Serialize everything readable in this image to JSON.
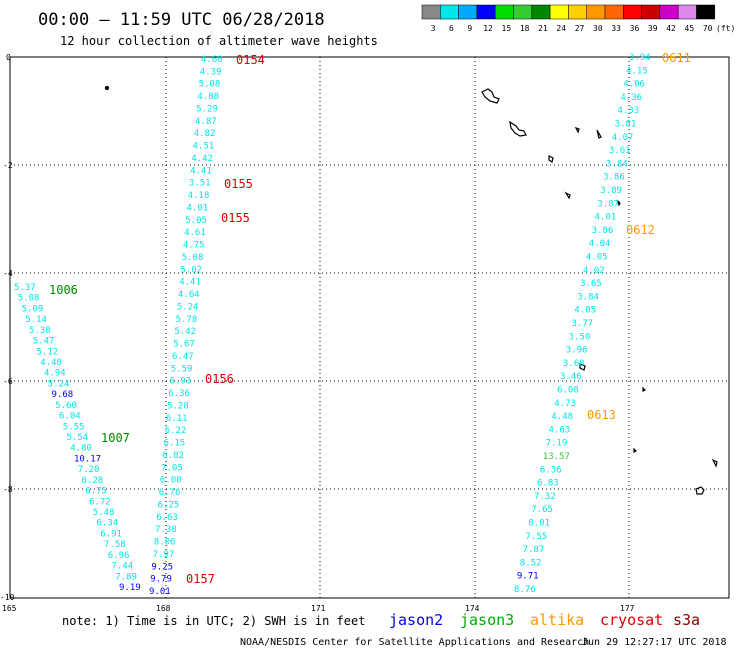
{
  "header": {
    "title": "00:00 — 11:59 UTC 06/28/2018",
    "subtitle": "12 hour collection of altimeter wave heights"
  },
  "legend": {
    "unit": "(ft)",
    "bins": [
      {
        "label": "3",
        "color": "#888888"
      },
      {
        "label": "6",
        "color": "#00e5e5"
      },
      {
        "label": "9",
        "color": "#00aaff"
      },
      {
        "label": "12",
        "color": "#0000ff"
      },
      {
        "label": "15",
        "color": "#00dd00"
      },
      {
        "label": "18",
        "color": "#33cc33"
      },
      {
        "label": "21",
        "color": "#008800"
      },
      {
        "label": "24",
        "color": "#ffff00"
      },
      {
        "label": "27",
        "color": "#ffd000"
      },
      {
        "label": "30",
        "color": "#ff9900"
      },
      {
        "label": "33",
        "color": "#ff6600"
      },
      {
        "label": "36",
        "color": "#ff0000"
      },
      {
        "label": "39",
        "color": "#cc0000"
      },
      {
        "label": "42",
        "color": "#cc00cc"
      },
      {
        "label": "45",
        "color": "#dd88ee"
      },
      {
        "label": "70",
        "color": "#000000"
      }
    ]
  },
  "map": {
    "x_ticks": [
      "165",
      "168",
      "171",
      "174",
      "177"
    ],
    "y_ticks": [
      "0",
      "-2",
      "-4",
      "-6",
      "-8",
      "-10"
    ]
  },
  "tracks": [
    {
      "id": "A",
      "values": [
        {
          "v": "4.60",
          "c": "#00e5e5"
        },
        {
          "v": "4.39",
          "c": "#00e5e5"
        },
        {
          "v": "5.08",
          "c": "#00e5e5"
        },
        {
          "v": "4.88",
          "c": "#00e5e5"
        },
        {
          "v": "5.29",
          "c": "#00e5e5"
        },
        {
          "v": "4.87",
          "c": "#00e5e5"
        },
        {
          "v": "4.82",
          "c": "#00e5e5"
        },
        {
          "v": "4.51",
          "c": "#00e5e5"
        },
        {
          "v": "4.42",
          "c": "#00e5e5"
        },
        {
          "v": "4.41",
          "c": "#00e5e5"
        },
        {
          "v": "3.51",
          "c": "#00e5e5"
        },
        {
          "v": "4.18",
          "c": "#00e5e5"
        },
        {
          "v": "4.01",
          "c": "#00e5e5"
        },
        {
          "v": "5.05",
          "c": "#00e5e5"
        },
        {
          "v": "4.61",
          "c": "#00e5e5"
        },
        {
          "v": "4.75",
          "c": "#00e5e5"
        },
        {
          "v": "5.08",
          "c": "#00e5e5"
        },
        {
          "v": "5.02",
          "c": "#00e5e5"
        },
        {
          "v": "4.41",
          "c": "#00e5e5"
        },
        {
          "v": "4.64",
          "c": "#00e5e5"
        },
        {
          "v": "5.24",
          "c": "#00e5e5"
        },
        {
          "v": "5.78",
          "c": "#00e5e5"
        },
        {
          "v": "5.42",
          "c": "#00e5e5"
        },
        {
          "v": "5.67",
          "c": "#00e5e5"
        },
        {
          "v": "6.47",
          "c": "#00e5e5"
        },
        {
          "v": "5.59",
          "c": "#00e5e5"
        },
        {
          "v": "5.93",
          "c": "#00e5e5"
        },
        {
          "v": "6.36",
          "c": "#00e5e5"
        },
        {
          "v": "5.28",
          "c": "#00e5e5"
        },
        {
          "v": "6.11",
          "c": "#00e5e5"
        },
        {
          "v": "6.22",
          "c": "#00e5e5"
        },
        {
          "v": "6.15",
          "c": "#00e5e5"
        },
        {
          "v": "6.82",
          "c": "#00e5e5"
        },
        {
          "v": "7.05",
          "c": "#00e5e5"
        },
        {
          "v": "6.00",
          "c": "#00e5e5"
        },
        {
          "v": "6.76",
          "c": "#00e5e5"
        },
        {
          "v": "6.25",
          "c": "#00e5e5"
        },
        {
          "v": "6.63",
          "c": "#00e5e5"
        },
        {
          "v": "7.38",
          "c": "#00e5e5"
        },
        {
          "v": "8.06",
          "c": "#00e5e5"
        },
        {
          "v": "7.97",
          "c": "#00e5e5"
        },
        {
          "v": "9.25",
          "c": "#0000ff"
        },
        {
          "v": "9.79",
          "c": "#0000ff"
        },
        {
          "v": "9.01",
          "c": "#0000ff"
        }
      ]
    },
    {
      "id": "B",
      "values": [
        {
          "v": "5.37",
          "c": "#00e5e5"
        },
        {
          "v": "5.08",
          "c": "#00e5e5"
        },
        {
          "v": "5.09",
          "c": "#00e5e5"
        },
        {
          "v": "5.14",
          "c": "#00e5e5"
        },
        {
          "v": "5.38",
          "c": "#00e5e5"
        },
        {
          "v": "5.47",
          "c": "#00e5e5"
        },
        {
          "v": "5.12",
          "c": "#00e5e5"
        },
        {
          "v": "4.48",
          "c": "#00e5e5"
        },
        {
          "v": "4.94",
          "c": "#00e5e5"
        },
        {
          "v": "5.24",
          "c": "#00e5e5"
        },
        {
          "v": "9.68",
          "c": "#0000ff"
        },
        {
          "v": "5.60",
          "c": "#00e5e5"
        },
        {
          "v": "6.04",
          "c": "#00e5e5"
        },
        {
          "v": "5.55",
          "c": "#00e5e5"
        },
        {
          "v": "5.54",
          "c": "#00e5e5"
        },
        {
          "v": "4.80",
          "c": "#00e5e5"
        },
        {
          "v": "10.17",
          "c": "#0000ff"
        },
        {
          "v": "7.20",
          "c": "#00e5e5"
        },
        {
          "v": "6.28",
          "c": "#00e5e5"
        },
        {
          "v": "6.75",
          "c": "#00e5e5"
        },
        {
          "v": "6.72",
          "c": "#00e5e5"
        },
        {
          "v": "5.48",
          "c": "#00e5e5"
        },
        {
          "v": "6.34",
          "c": "#00e5e5"
        },
        {
          "v": "6.91",
          "c": "#00e5e5"
        },
        {
          "v": "7.58",
          "c": "#00e5e5"
        },
        {
          "v": "6.96",
          "c": "#00e5e5"
        },
        {
          "v": "7.44",
          "c": "#00e5e5"
        },
        {
          "v": "7.89",
          "c": "#00e5e5"
        },
        {
          "v": "9.19",
          "c": "#0000ff"
        }
      ]
    },
    {
      "id": "C",
      "values": [
        {
          "v": "3.94",
          "c": "#00e5e5"
        },
        {
          "v": "4.15",
          "c": "#00e5e5"
        },
        {
          "v": "4.06",
          "c": "#00e5e5"
        },
        {
          "v": "4.36",
          "c": "#00e5e5"
        },
        {
          "v": "4.33",
          "c": "#00e5e5"
        },
        {
          "v": "3.81",
          "c": "#00e5e5"
        },
        {
          "v": "4.07",
          "c": "#00e5e5"
        },
        {
          "v": "3.61",
          "c": "#00e5e5"
        },
        {
          "v": "3.84",
          "c": "#00e5e5"
        },
        {
          "v": "3.86",
          "c": "#00e5e5"
        },
        {
          "v": "3.89",
          "c": "#00e5e5"
        },
        {
          "v": "3.87",
          "c": "#00e5e5"
        },
        {
          "v": "4.01",
          "c": "#00e5e5"
        },
        {
          "v": "3.86",
          "c": "#00e5e5"
        },
        {
          "v": "4.04",
          "c": "#00e5e5"
        },
        {
          "v": "4.05",
          "c": "#00e5e5"
        },
        {
          "v": "4.02",
          "c": "#00e5e5"
        },
        {
          "v": "3.65",
          "c": "#00e5e5"
        },
        {
          "v": "3.84",
          "c": "#00e5e5"
        },
        {
          "v": "4.05",
          "c": "#00e5e5"
        },
        {
          "v": "3.77",
          "c": "#00e5e5"
        },
        {
          "v": "3.50",
          "c": "#00e5e5"
        },
        {
          "v": "3.96",
          "c": "#00e5e5"
        },
        {
          "v": "3.68",
          "c": "#00e5e5"
        },
        {
          "v": "3.46",
          "c": "#00e5e5"
        },
        {
          "v": "6.08",
          "c": "#00e5e5"
        },
        {
          "v": "4.73",
          "c": "#00e5e5"
        },
        {
          "v": "4.48",
          "c": "#00e5e5"
        },
        {
          "v": "4.63",
          "c": "#00e5e5"
        },
        {
          "v": "7.19",
          "c": "#00e5e5"
        },
        {
          "v": "13.57",
          "c": "#33cc33"
        },
        {
          "v": "6.36",
          "c": "#00e5e5"
        },
        {
          "v": "6.83",
          "c": "#00e5e5"
        },
        {
          "v": "7.32",
          "c": "#00e5e5"
        },
        {
          "v": "7.65",
          "c": "#00e5e5"
        },
        {
          "v": "8.01",
          "c": "#00e5e5"
        },
        {
          "v": "7.55",
          "c": "#00e5e5"
        },
        {
          "v": "7.87",
          "c": "#00e5e5"
        },
        {
          "v": "8.52",
          "c": "#00e5e5"
        },
        {
          "v": "9.71",
          "c": "#0000ff"
        },
        {
          "v": "8.76",
          "c": "#00e5e5"
        }
      ]
    }
  ],
  "pass_labels": [
    {
      "text": "0154",
      "color": "#dd0000"
    },
    {
      "text": "0155",
      "color": "#dd0000"
    },
    {
      "text": "0155",
      "color": "#dd0000"
    },
    {
      "text": "0156",
      "color": "#dd0000"
    },
    {
      "text": "0157",
      "color": "#dd0000"
    },
    {
      "text": "1006",
      "color": "#008800"
    },
    {
      "text": "1007",
      "color": "#008800"
    },
    {
      "text": "0611",
      "color": "#ff9900"
    },
    {
      "text": "0612",
      "color": "#ff9900"
    },
    {
      "text": "0613",
      "color": "#ff9900"
    }
  ],
  "footer": {
    "note": "note: 1) Time is in UTC; 2) SWH is in feet",
    "satellites": [
      {
        "name": "jason2",
        "color": "#0000ee"
      },
      {
        "name": "jason3",
        "color": "#00aa00"
      },
      {
        "name": "altika",
        "color": "#ff9900"
      },
      {
        "name": "cryosat",
        "color": "#dd0000"
      },
      {
        "name": "s3a",
        "color": "#880000"
      }
    ],
    "credit": "NOAA/NESDIS Center for Satellite Applications and Research",
    "timestamp": "Jun 29 12:27:17 UTC 2018"
  }
}
